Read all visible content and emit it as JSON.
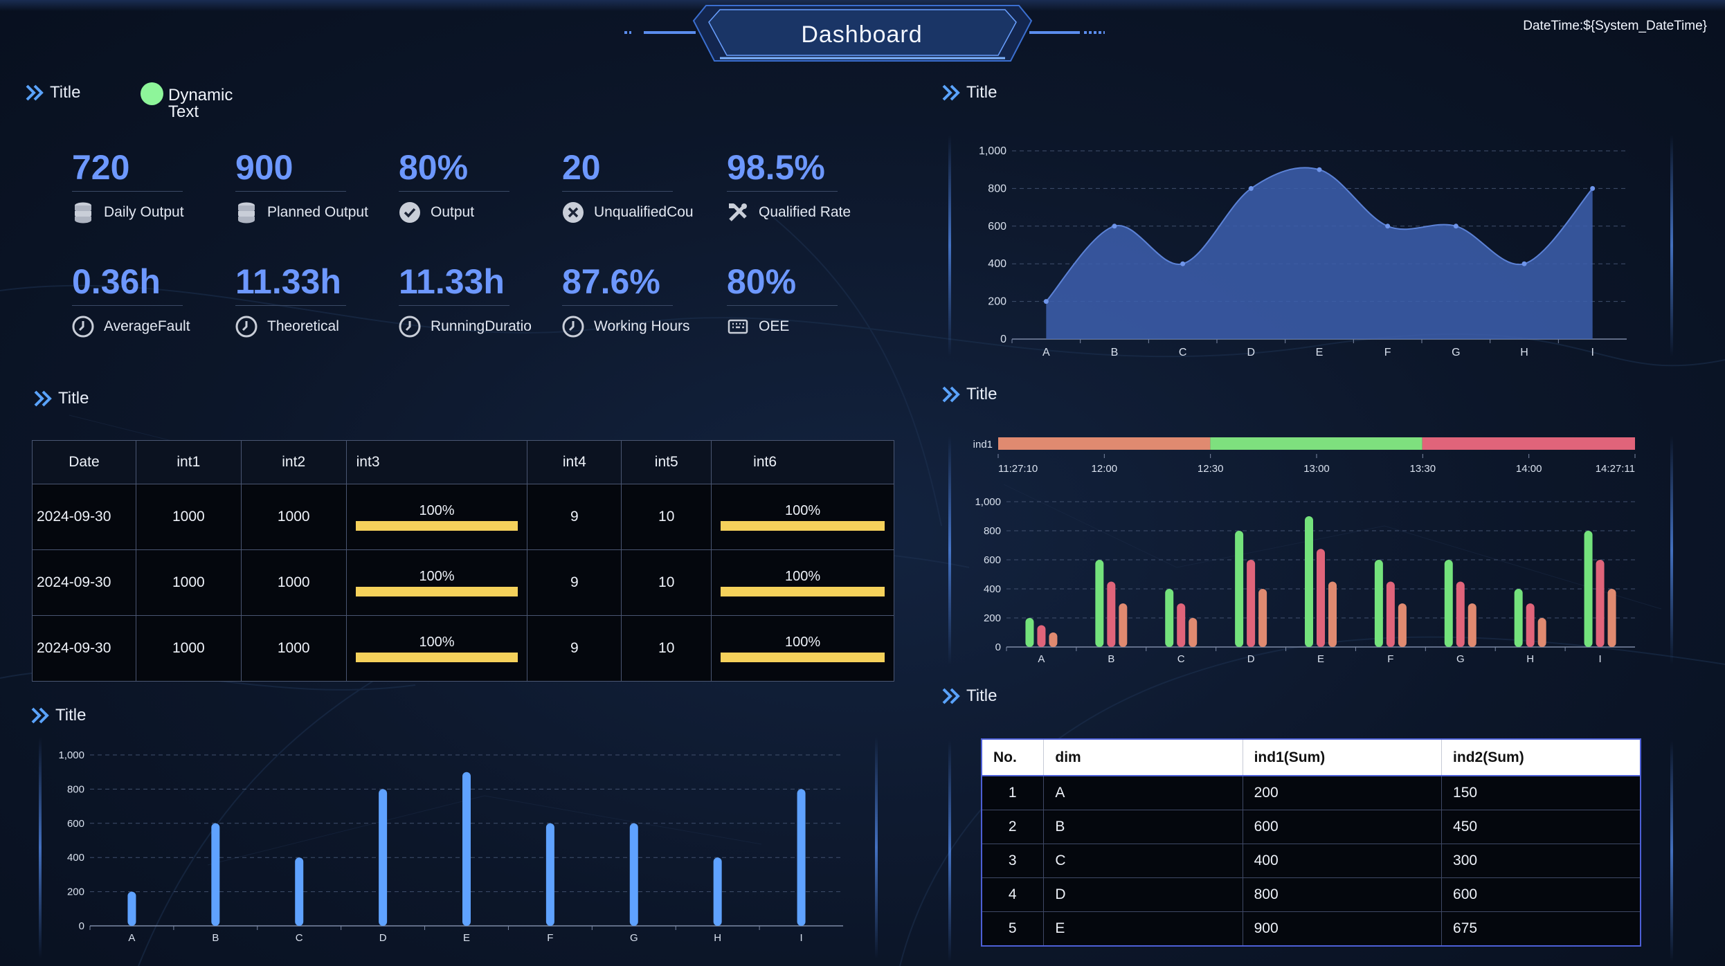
{
  "header": {
    "title": "Dashboard",
    "datetime": "DateTime:${System_DateTime}"
  },
  "kpi_section": {
    "title": "Title",
    "dynamic_text": "Dynamic Text",
    "status_color": "#8ef59a",
    "row1": [
      {
        "value": "720",
        "label": "Daily Output",
        "icon": "database-icon"
      },
      {
        "value": "900",
        "label": "Planned Output",
        "icon": "database-icon"
      },
      {
        "value": "80%",
        "label": "Output",
        "icon": "check-circle-icon"
      },
      {
        "value": "20",
        "label": "UnqualifiedCou",
        "icon": "close-circle-icon"
      },
      {
        "value": "98.5%",
        "label": "Qualified Rate",
        "icon": "tools-icon"
      }
    ],
    "row2": [
      {
        "value": "0.36h",
        "label": "AverageFault",
        "icon": "clock-icon"
      },
      {
        "value": "11.33h",
        "label": "Theoretical",
        "icon": "clock-icon"
      },
      {
        "value": "11.33h",
        "label": "RunningDuratio",
        "icon": "clock-icon"
      },
      {
        "value": "87.6%",
        "label": "Working Hours",
        "icon": "clock-icon"
      },
      {
        "value": "80%",
        "label": "OEE",
        "icon": "keyboard-icon"
      }
    ]
  },
  "table_section": {
    "title": "Title",
    "columns": [
      "Date",
      "int1",
      "int2",
      "int3",
      "int4",
      "int5",
      "int6"
    ],
    "rows": [
      {
        "date": "2024-09-30",
        "int1": "1000",
        "int2": "1000",
        "int3": "100%",
        "int3_fill": 1.0,
        "int4": "9",
        "int5": "10",
        "int6": "100%",
        "int6_fill": 1.0
      },
      {
        "date": "2024-09-30",
        "int1": "1000",
        "int2": "1000",
        "int3": "100%",
        "int3_fill": 1.0,
        "int4": "9",
        "int5": "10",
        "int6": "100%",
        "int6_fill": 1.0
      },
      {
        "date": "2024-09-30",
        "int1": "1000",
        "int2": "1000",
        "int3": "100%",
        "int3_fill": 1.0,
        "int4": "9",
        "int5": "10",
        "int6": "100%",
        "int6_fill": 1.0
      }
    ],
    "bar_color": "#f5d15b"
  },
  "bar_section": {
    "title": "Title"
  },
  "area_section": {
    "title": "Title"
  },
  "timeline_section": {
    "title": "Title"
  },
  "summary_section": {
    "title": "Title",
    "columns": [
      "No.",
      "dim",
      "ind1(Sum)",
      "ind2(Sum)"
    ],
    "rows": [
      {
        "no": "1",
        "dim": "A",
        "ind1": "200",
        "ind2": "150"
      },
      {
        "no": "2",
        "dim": "B",
        "ind1": "600",
        "ind2": "450"
      },
      {
        "no": "3",
        "dim": "C",
        "ind1": "400",
        "ind2": "300"
      },
      {
        "no": "4",
        "dim": "D",
        "ind1": "800",
        "ind2": "600"
      },
      {
        "no": "5",
        "dim": "E",
        "ind1": "900",
        "ind2": "675"
      }
    ]
  },
  "chart_data": [
    {
      "id": "area",
      "type": "area",
      "categories": [
        "A",
        "B",
        "C",
        "D",
        "E",
        "F",
        "G",
        "H",
        "I"
      ],
      "series": [
        {
          "values": [
            200,
            600,
            400,
            800,
            900,
            600,
            600,
            400,
            800
          ]
        }
      ],
      "yticks": [
        "0",
        "200",
        "400",
        "600",
        "800",
        "1,000"
      ],
      "ylim": [
        0,
        1000
      ],
      "grid": true,
      "color": "#3d5fae"
    },
    {
      "id": "timeline",
      "type": "bar",
      "label": "ind1",
      "ticks": [
        "11:27:10",
        "12:00",
        "12:30",
        "13:00",
        "13:30",
        "14:00",
        "14:27:11"
      ],
      "segments": [
        {
          "color": "#e08a70",
          "fraction": 0.333
        },
        {
          "color": "#7ee07e",
          "fraction": 0.333
        },
        {
          "color": "#e0647a",
          "fraction": 0.334
        }
      ]
    },
    {
      "id": "grouped",
      "type": "bar",
      "categories": [
        "A",
        "B",
        "C",
        "D",
        "E",
        "F",
        "G",
        "H",
        "I"
      ],
      "series": [
        {
          "color": "#74e27c",
          "values": [
            200,
            600,
            400,
            800,
            900,
            600,
            600,
            400,
            800
          ]
        },
        {
          "color": "#e0647a",
          "values": [
            150,
            450,
            300,
            600,
            675,
            450,
            450,
            300,
            600
          ]
        },
        {
          "color": "#e08a70",
          "values": [
            100,
            300,
            200,
            400,
            450,
            300,
            300,
            200,
            400
          ]
        }
      ],
      "yticks": [
        "0",
        "200",
        "400",
        "600",
        "800",
        "1,000"
      ],
      "ylim": [
        0,
        1000
      ],
      "grid": true
    },
    {
      "id": "single",
      "type": "bar",
      "categories": [
        "A",
        "B",
        "C",
        "D",
        "E",
        "F",
        "G",
        "H",
        "I"
      ],
      "series": [
        {
          "color": "#5fa2ff",
          "values": [
            200,
            600,
            400,
            800,
            900,
            600,
            600,
            400,
            800
          ]
        }
      ],
      "yticks": [
        "0",
        "200",
        "400",
        "600",
        "800",
        "1,000"
      ],
      "ylim": [
        0,
        1000
      ],
      "grid": true
    }
  ]
}
